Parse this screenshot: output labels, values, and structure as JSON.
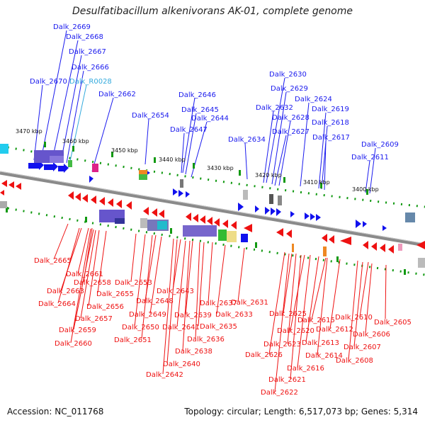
{
  "title": "Desulfatibacillum alkenivorans AK-01, complete genome",
  "accession": "Accession: NC_011768",
  "summary": "Topology: circular; Length: 6,517,073 bp; Genes: 5,314",
  "colors": {
    "forward_gene": "#1010ee",
    "reverse_gene": "#ee1111",
    "rna_label": "#33aadd",
    "backbone": "#888888",
    "tick": "#119911"
  },
  "scale_labels": [
    "3470 kbp",
    "3460 kbp",
    "3450 kbp",
    "3440 kbp",
    "3430 kbp",
    "3420 kbp",
    "3410 kbp",
    "3400 kbp"
  ],
  "top_labels": [
    "Dalk_2669",
    "Dalk_2668",
    "Dalk_2667",
    "Dalk_2666",
    "Dalk_2670",
    "Dalk_R0028",
    "Dalk_2662",
    "Dalk_2654",
    "Dalk_2646",
    "Dalk_2645",
    "Dalk_2644",
    "Dalk_2647",
    "Dalk_2634",
    "Dalk_2630",
    "Dalk_2629",
    "Dalk_2624",
    "Dalk_2632",
    "Dalk_2619",
    "Dalk_2628",
    "Dalk_2618",
    "Dalk_2627",
    "Dalk_2617",
    "Dalk_2609",
    "Dalk_2611"
  ],
  "bottom_labels": [
    "Dalk_2665",
    "Dalk_2661",
    "Dalk_2658",
    "Dalk_2663",
    "Dalk_2655",
    "Dalk_2653",
    "Dalk_2664",
    "Dalk_2656",
    "Dalk_2648",
    "Dalk_2643",
    "Dalk_2657",
    "Dalk_2649",
    "Dalk_2637",
    "Dalk_2631",
    "Dalk_2639",
    "Dalk_2633",
    "Dalk_2659",
    "Dalk_2650",
    "Dalk_2641",
    "Dalk_2635",
    "Dalk_2625",
    "Dalk_2615",
    "Dalk_2610",
    "Dalk_2605",
    "Dalk_2620",
    "Dalk_2612",
    "Dalk_2606",
    "Dalk_2651",
    "Dalk_2636",
    "Dalk_2660",
    "Dalk_2638",
    "Dalk_2623",
    "Dalk_2613",
    "Dalk_2607",
    "Dalk_2626",
    "Dalk_2614",
    "Dalk_2608",
    "Dalk_2640",
    "Dalk_2616",
    "Dalk_2642",
    "Dalk_2621",
    "Dalk_2622"
  ]
}
